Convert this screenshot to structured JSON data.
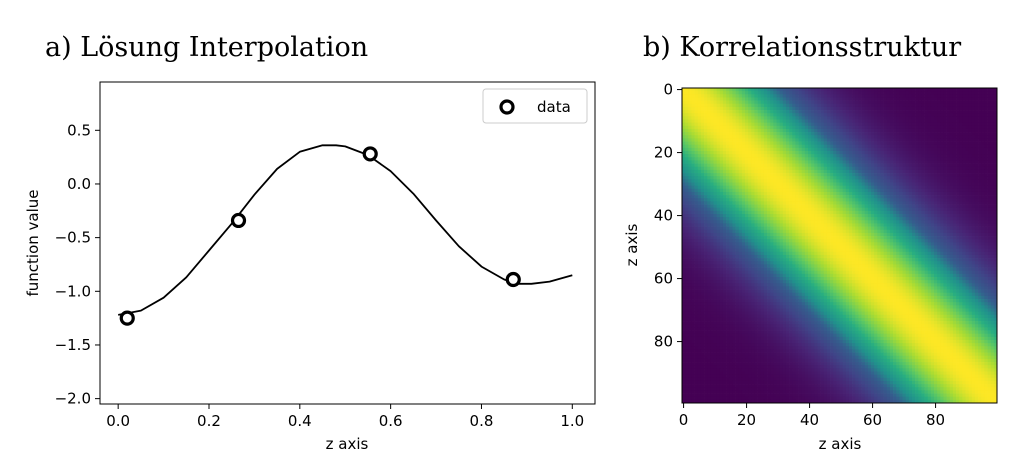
{
  "chart_data": [
    {
      "type": "line",
      "title": "a) Lösung Interpolation",
      "xlabel": "z axis",
      "ylabel": "function value",
      "xlim": [
        -0.04,
        1.05
      ],
      "ylim": [
        -2.05,
        0.95
      ],
      "xticks": [
        "0.0",
        "0.2",
        "0.4",
        "0.6",
        "0.8",
        "1.0"
      ],
      "xtick_values": [
        0.0,
        0.2,
        0.4,
        0.6,
        0.8,
        1.0
      ],
      "yticks": [
        "0.5",
        "0.0",
        "−0.5",
        "−1.0",
        "−1.5",
        "−2.0"
      ],
      "ytick_values": [
        0.5,
        0.0,
        -0.5,
        -1.0,
        -1.5,
        -2.0
      ],
      "grid": false,
      "legend": {
        "position": "top-right",
        "entries": [
          "data"
        ]
      },
      "series": [
        {
          "kind": "curve",
          "color": "#000000",
          "x": [
            0.0,
            0.05,
            0.1,
            0.15,
            0.2,
            0.25,
            0.3,
            0.35,
            0.4,
            0.45,
            0.48,
            0.5,
            0.55,
            0.6,
            0.65,
            0.7,
            0.75,
            0.8,
            0.85,
            0.88,
            0.91,
            0.95,
            1.0
          ],
          "y": [
            -1.22,
            -1.18,
            -1.06,
            -0.87,
            -0.62,
            -0.37,
            -0.1,
            0.14,
            0.3,
            0.36,
            0.36,
            0.35,
            0.27,
            0.12,
            -0.09,
            -0.34,
            -0.58,
            -0.77,
            -0.89,
            -0.93,
            -0.93,
            -0.91,
            -0.85
          ]
        },
        {
          "name": "data",
          "kind": "markers",
          "marker": "hollow-circle",
          "color": "#000000",
          "x": [
            0.02,
            0.265,
            0.555,
            0.87
          ],
          "y": [
            -1.25,
            -0.34,
            0.28,
            -0.89
          ]
        }
      ]
    },
    {
      "type": "heatmap",
      "title": "b) Korrelationsstruktur",
      "xlabel": "z axis",
      "ylabel": "z axis",
      "size": 100,
      "kernel": "gaussian",
      "length_scale_index": 22,
      "colormap": "viridis",
      "xticks": [
        "0",
        "20",
        "40",
        "60",
        "80"
      ],
      "xtick_values": [
        0,
        20,
        40,
        60,
        80
      ],
      "yticks": [
        "0",
        "20",
        "40",
        "60",
        "80"
      ],
      "ytick_values": [
        0,
        20,
        40,
        60,
        80
      ]
    }
  ]
}
